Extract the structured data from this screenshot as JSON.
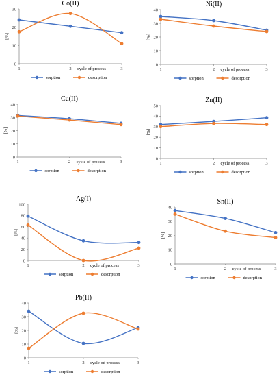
{
  "colors": {
    "sorption": "#4472c4",
    "desorption": "#ed7d31",
    "axis": "#808080",
    "grid": "#d9d9d9"
  },
  "chart_data": [
    {
      "type": "line",
      "title": "Co(II)",
      "xlabel": "cycle of process",
      "ylabel": "[%]",
      "categories": [
        "1",
        "2",
        "3"
      ],
      "ylim": [
        0,
        30
      ],
      "yticks": [
        "0",
        "10",
        "20",
        "30"
      ],
      "series": [
        {
          "name": "sorption",
          "values": [
            24,
            20.5,
            17
          ]
        },
        {
          "name": "desorption",
          "values": [
            17.5,
            27.5,
            11
          ]
        }
      ],
      "legend": "bottom"
    },
    {
      "type": "line",
      "title": "Ni(II)",
      "xlabel": "cycle of process",
      "ylabel": "[%]",
      "categories": [
        "1",
        "2",
        "3"
      ],
      "ylim": [
        0,
        40
      ],
      "yticks": [
        "0",
        "10",
        "20",
        "30",
        "40"
      ],
      "series": [
        {
          "name": "sorption",
          "values": [
            35,
            32,
            25
          ]
        },
        {
          "name": "desorption",
          "values": [
            33,
            28,
            24
          ]
        }
      ],
      "legend": "bottom"
    },
    {
      "type": "line",
      "title": "Cu(II)",
      "xlabel": "cycle of process",
      "ylabel": "[%]",
      "categories": [
        "1",
        "2",
        "3"
      ],
      "ylim": [
        0,
        40
      ],
      "yticks": [
        "0",
        "10",
        "20",
        "30",
        "40"
      ],
      "series": [
        {
          "name": "sorption",
          "values": [
            31.5,
            29,
            25.5
          ]
        },
        {
          "name": "desorption",
          "values": [
            31,
            28,
            24.5
          ]
        }
      ],
      "legend": "bottom"
    },
    {
      "type": "line",
      "title": "Zn(II)",
      "xlabel": "cycle of process",
      "ylabel": "[%]",
      "categories": [
        "1",
        "2",
        "3"
      ],
      "ylim": [
        0,
        50
      ],
      "yticks": [
        "0",
        "10",
        "20",
        "30",
        "40",
        "50"
      ],
      "series": [
        {
          "name": "sorption",
          "values": [
            32,
            35,
            38.5
          ]
        },
        {
          "name": "desorption",
          "values": [
            30,
            33,
            32
          ]
        }
      ],
      "legend": "bottom"
    },
    {
      "type": "line",
      "title": "Ag(I)",
      "xlabel": "cycle of process",
      "ylabel": "[%]",
      "categories": [
        "1",
        "2",
        "3"
      ],
      "ylim": [
        0,
        100
      ],
      "yticks": [
        "0",
        "20",
        "40",
        "60",
        "80",
        "100"
      ],
      "series": [
        {
          "name": "sorption",
          "values": [
            79,
            35,
            32
          ]
        },
        {
          "name": "desorption",
          "values": [
            63,
            0,
            22
          ]
        }
      ],
      "legend": "bottom"
    },
    {
      "type": "line",
      "title": "Sn(II)",
      "xlabel": "cycle of process",
      "ylabel": "[%]",
      "categories": [
        "1",
        "2",
        "3"
      ],
      "ylim": [
        0,
        40
      ],
      "yticks": [
        "0",
        "10",
        "20",
        "30",
        "40"
      ],
      "series": [
        {
          "name": "sorption",
          "values": [
            37.5,
            32,
            22
          ]
        },
        {
          "name": "desorption",
          "values": [
            35,
            23,
            18.5
          ]
        }
      ],
      "legend": "bottom"
    },
    {
      "type": "line",
      "title": "Pb(II)",
      "xlabel": "cycle od process",
      "ylabel": "[%]",
      "categories": [
        "1",
        "2",
        "3"
      ],
      "ylim": [
        0,
        40
      ],
      "yticks": [
        "0",
        "10",
        "20",
        "30",
        "40"
      ],
      "series": [
        {
          "name": "sorption",
          "values": [
            34,
            10.5,
            22
          ]
        },
        {
          "name": "desorption",
          "values": [
            7,
            32.5,
            21
          ]
        }
      ],
      "legend": "bottom"
    }
  ]
}
